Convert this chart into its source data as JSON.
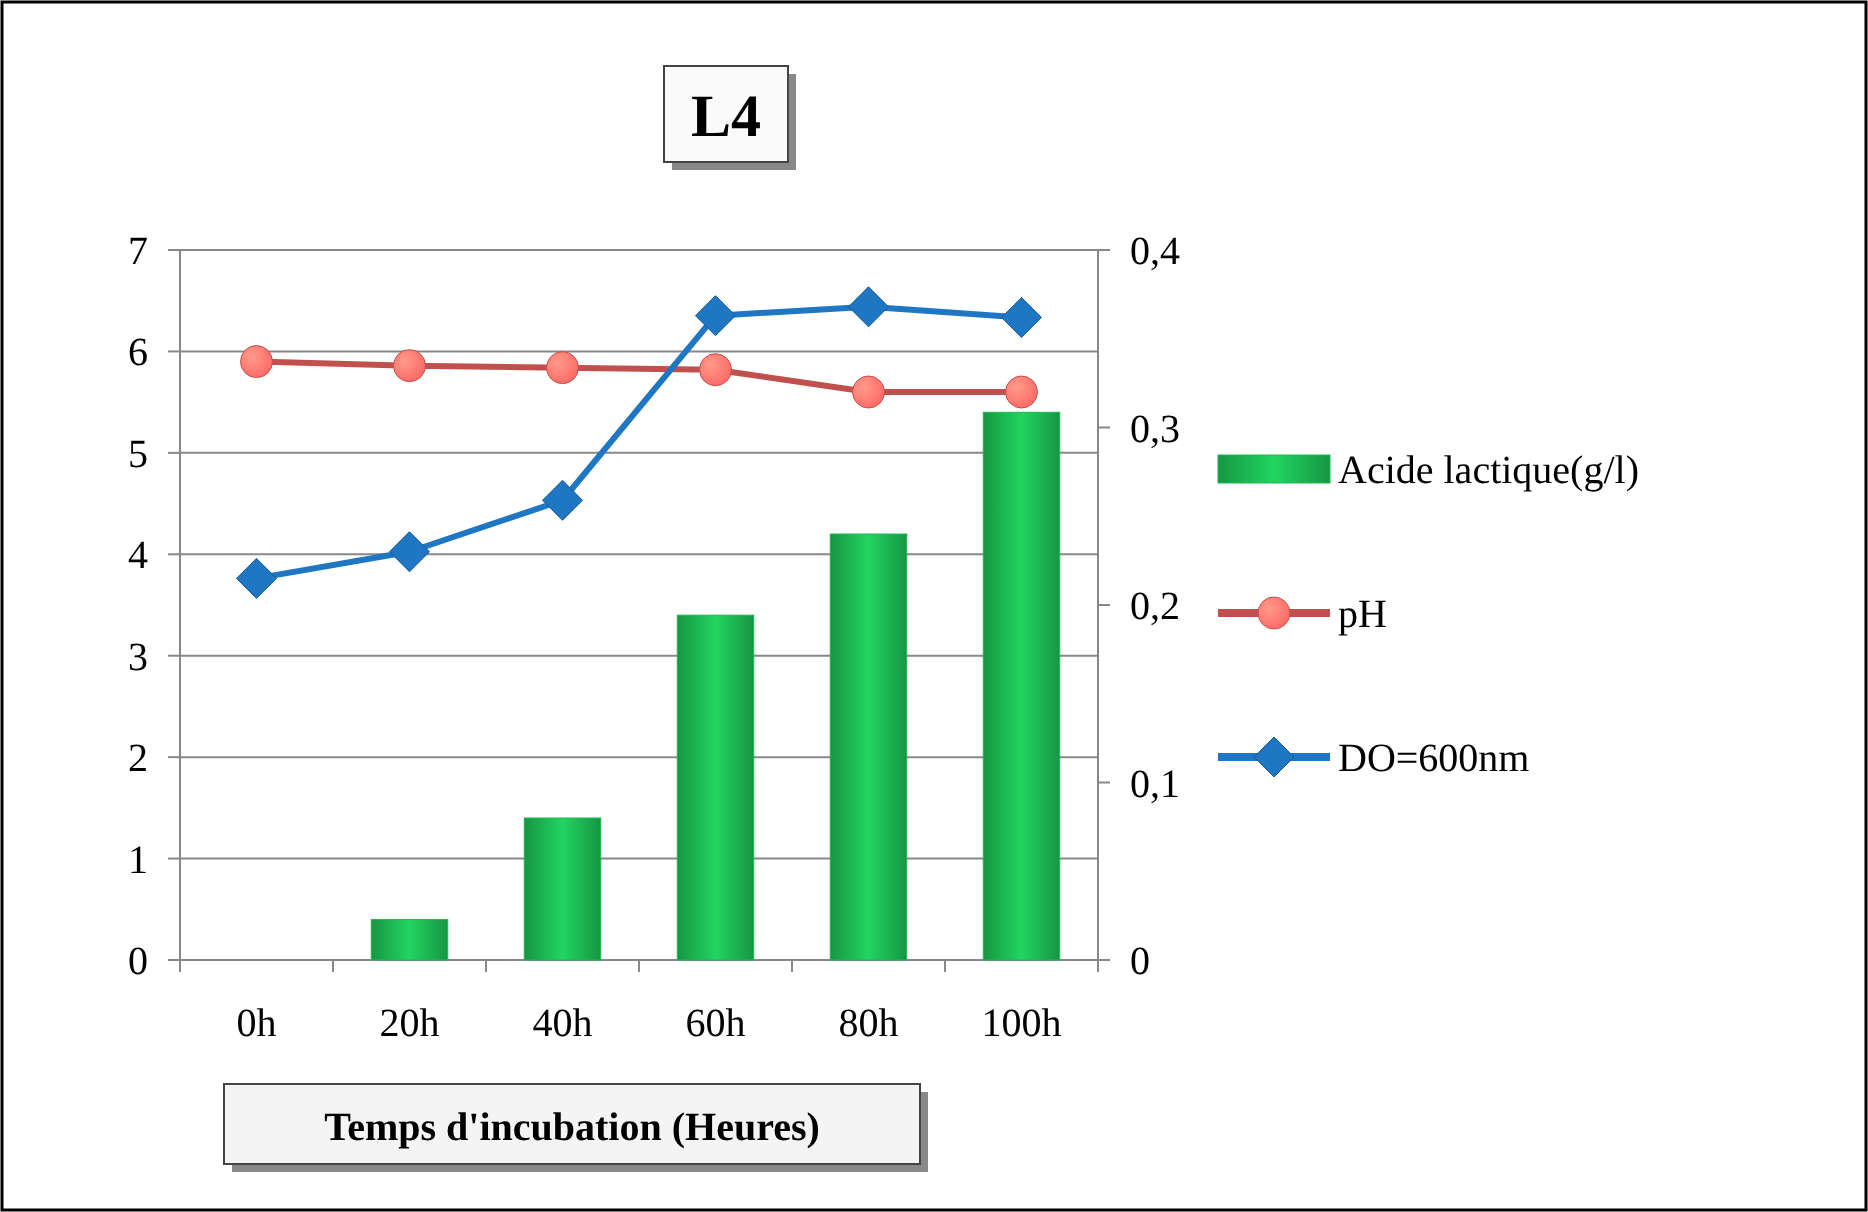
{
  "chart_data": {
    "type": "bar",
    "title": "L4",
    "xlabel": "Temps d'incubation (Heures)",
    "categories": [
      "0h",
      "20h",
      "40h",
      "60h",
      "80h",
      "100h"
    ],
    "series": [
      {
        "name": "Acide lactique(g/l)",
        "color": "#1db954",
        "values": [
          0,
          0.4,
          1.4,
          3.4,
          4.2,
          5.4
        ]
      },
      {
        "name": "pH",
        "type": "line",
        "color": "#c0504d",
        "marker": "circle",
        "values": [
          5.9,
          5.86,
          5.84,
          5.82,
          5.6,
          5.6
        ]
      },
      {
        "name": "DO=600nm",
        "type": "line",
        "color": "#1f77c4",
        "marker": "diamond",
        "axis": "y2",
        "values": [
          0.215,
          0.23,
          0.259,
          0.363,
          0.368,
          0.362
        ]
      }
    ],
    "ylim": [
      0,
      7
    ],
    "yticks": [
      0,
      1,
      2,
      3,
      4,
      5,
      6,
      7
    ],
    "y2lim": [
      0,
      0.4
    ],
    "y2ticks": [
      0,
      {
        "value": 0.1,
        "label": "0,1"
      },
      {
        "value": 0.2,
        "label": "0,2"
      },
      {
        "value": 0.3,
        "label": "0,3"
      },
      {
        "value": 0.4,
        "label": "0,4"
      }
    ],
    "grid": "y",
    "legend": "right"
  }
}
